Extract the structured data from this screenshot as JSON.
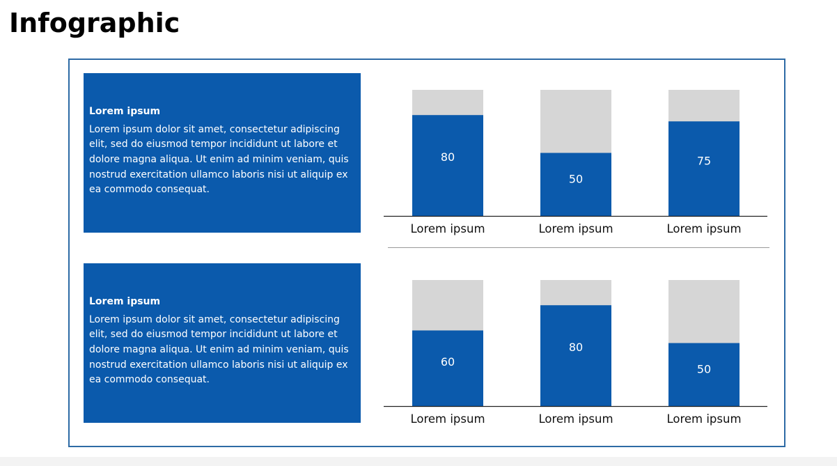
{
  "page": {
    "title": "Infographic"
  },
  "colors": {
    "accent": "#0b5aac",
    "track": "#d6d6d6",
    "frame": "#2d6aa5"
  },
  "panels": [
    {
      "heading": "Lorem ipsum",
      "body": "Lorem ipsum dolor sit amet, consectetur adipiscing elit, sed do eiusmod tempor incididunt ut labore et dolore magna aliqua. Ut enim ad minim veniam, quis nostrud exercitation ullamco laboris nisi ut aliquip ex ea commodo consequat."
    },
    {
      "heading": "Lorem ipsum",
      "body": "Lorem ipsum dolor sit amet, consectetur adipiscing elit, sed do eiusmod tempor incididunt ut labore et dolore magna aliqua. Ut enim ad minim veniam, quis nostrud exercitation ullamco laboris nisi ut aliquip ex ea commodo consequat."
    }
  ],
  "chart_data": [
    {
      "type": "bar",
      "categories": [
        "Lorem ipsum",
        "Lorem ipsum",
        "Lorem ipsum"
      ],
      "values": [
        80,
        50,
        75
      ],
      "ylim": [
        0,
        100
      ],
      "grid": false,
      "stacked_remainder": true
    },
    {
      "type": "bar",
      "categories": [
        "Lorem ipsum",
        "Lorem ipsum",
        "Lorem ipsum"
      ],
      "values": [
        60,
        80,
        50
      ],
      "ylim": [
        0,
        100
      ],
      "grid": false,
      "stacked_remainder": true
    }
  ]
}
